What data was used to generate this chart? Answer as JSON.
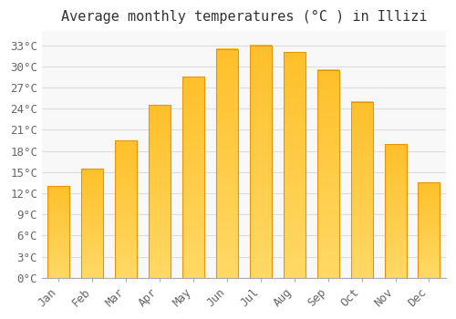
{
  "title": "Average monthly temperatures (°C ) in Illizi",
  "months": [
    "Jan",
    "Feb",
    "Mar",
    "Apr",
    "May",
    "Jun",
    "Jul",
    "Aug",
    "Sep",
    "Oct",
    "Nov",
    "Dec"
  ],
  "values": [
    13,
    15.5,
    19.5,
    24.5,
    28.5,
    32.5,
    33,
    32,
    29.5,
    25,
    19,
    13.5
  ],
  "bar_color_main": "#FFC02A",
  "bar_color_light": "#FFD966",
  "bar_edge_color": "#E8940A",
  "background_color": "#FFFFFF",
  "plot_bg_color": "#F8F8F8",
  "grid_color": "#DDDDDD",
  "ylim": [
    0,
    35
  ],
  "ytick_step": 3,
  "title_fontsize": 11,
  "tick_fontsize": 9,
  "font_family": "monospace"
}
